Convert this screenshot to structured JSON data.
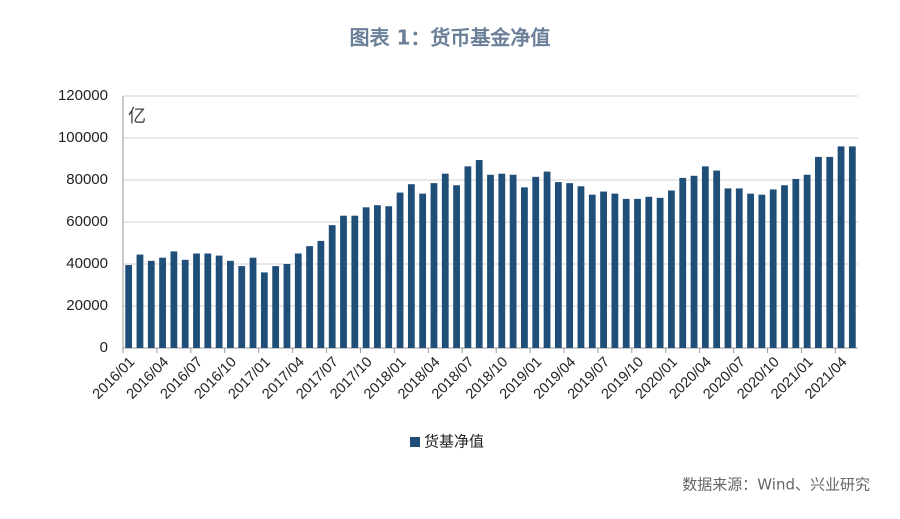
{
  "chart_data": {
    "type": "bar",
    "title": "图表 1：货币基金净值",
    "unit_label": "亿",
    "source": "数据来源：Wind、兴业研究",
    "categories": [
      "2016/01",
      null,
      null,
      "2016/04",
      null,
      null,
      "2016/07",
      null,
      null,
      "2016/10",
      null,
      null,
      "2017/01",
      null,
      null,
      "2017/04",
      null,
      null,
      "2017/07",
      null,
      null,
      "2017/10",
      null,
      null,
      "2018/01",
      null,
      null,
      "2018/04",
      null,
      null,
      "2018/07",
      null,
      null,
      "2018/10",
      null,
      null,
      "2019/01",
      null,
      null,
      "2019/04",
      null,
      null,
      "2019/07",
      null,
      null,
      "2019/10",
      null,
      null,
      "2020/01",
      null,
      null,
      "2020/04",
      null,
      null,
      "2020/07",
      null,
      null,
      "2020/10",
      null,
      null,
      "2021/01",
      null,
      null,
      "2021/04",
      null
    ],
    "series": [
      {
        "name": "货基净值",
        "color": "#1f4e79",
        "values": [
          39500,
          44500,
          41500,
          43000,
          46000,
          42000,
          45000,
          45000,
          44000,
          41500,
          39000,
          43000,
          36000,
          39000,
          40000,
          45000,
          48500,
          51000,
          58500,
          63000,
          63000,
          67000,
          68000,
          67500,
          74000,
          78000,
          73500,
          78500,
          83000,
          77500,
          86500,
          89500,
          82500,
          83000,
          82500,
          76500,
          81500,
          84000,
          79000,
          78500,
          77000,
          73000,
          74500,
          73500,
          71000,
          71000,
          72000,
          71500,
          75000,
          81000,
          82000,
          86500,
          84500,
          76000,
          76000,
          73500,
          73000,
          75500,
          77500,
          80500,
          82500,
          91000,
          91000,
          96000,
          96000
        ]
      }
    ],
    "ylim": [
      0,
      120000
    ],
    "yticks": [
      0,
      20000,
      40000,
      60000,
      80000,
      100000,
      120000
    ],
    "grid": true
  }
}
